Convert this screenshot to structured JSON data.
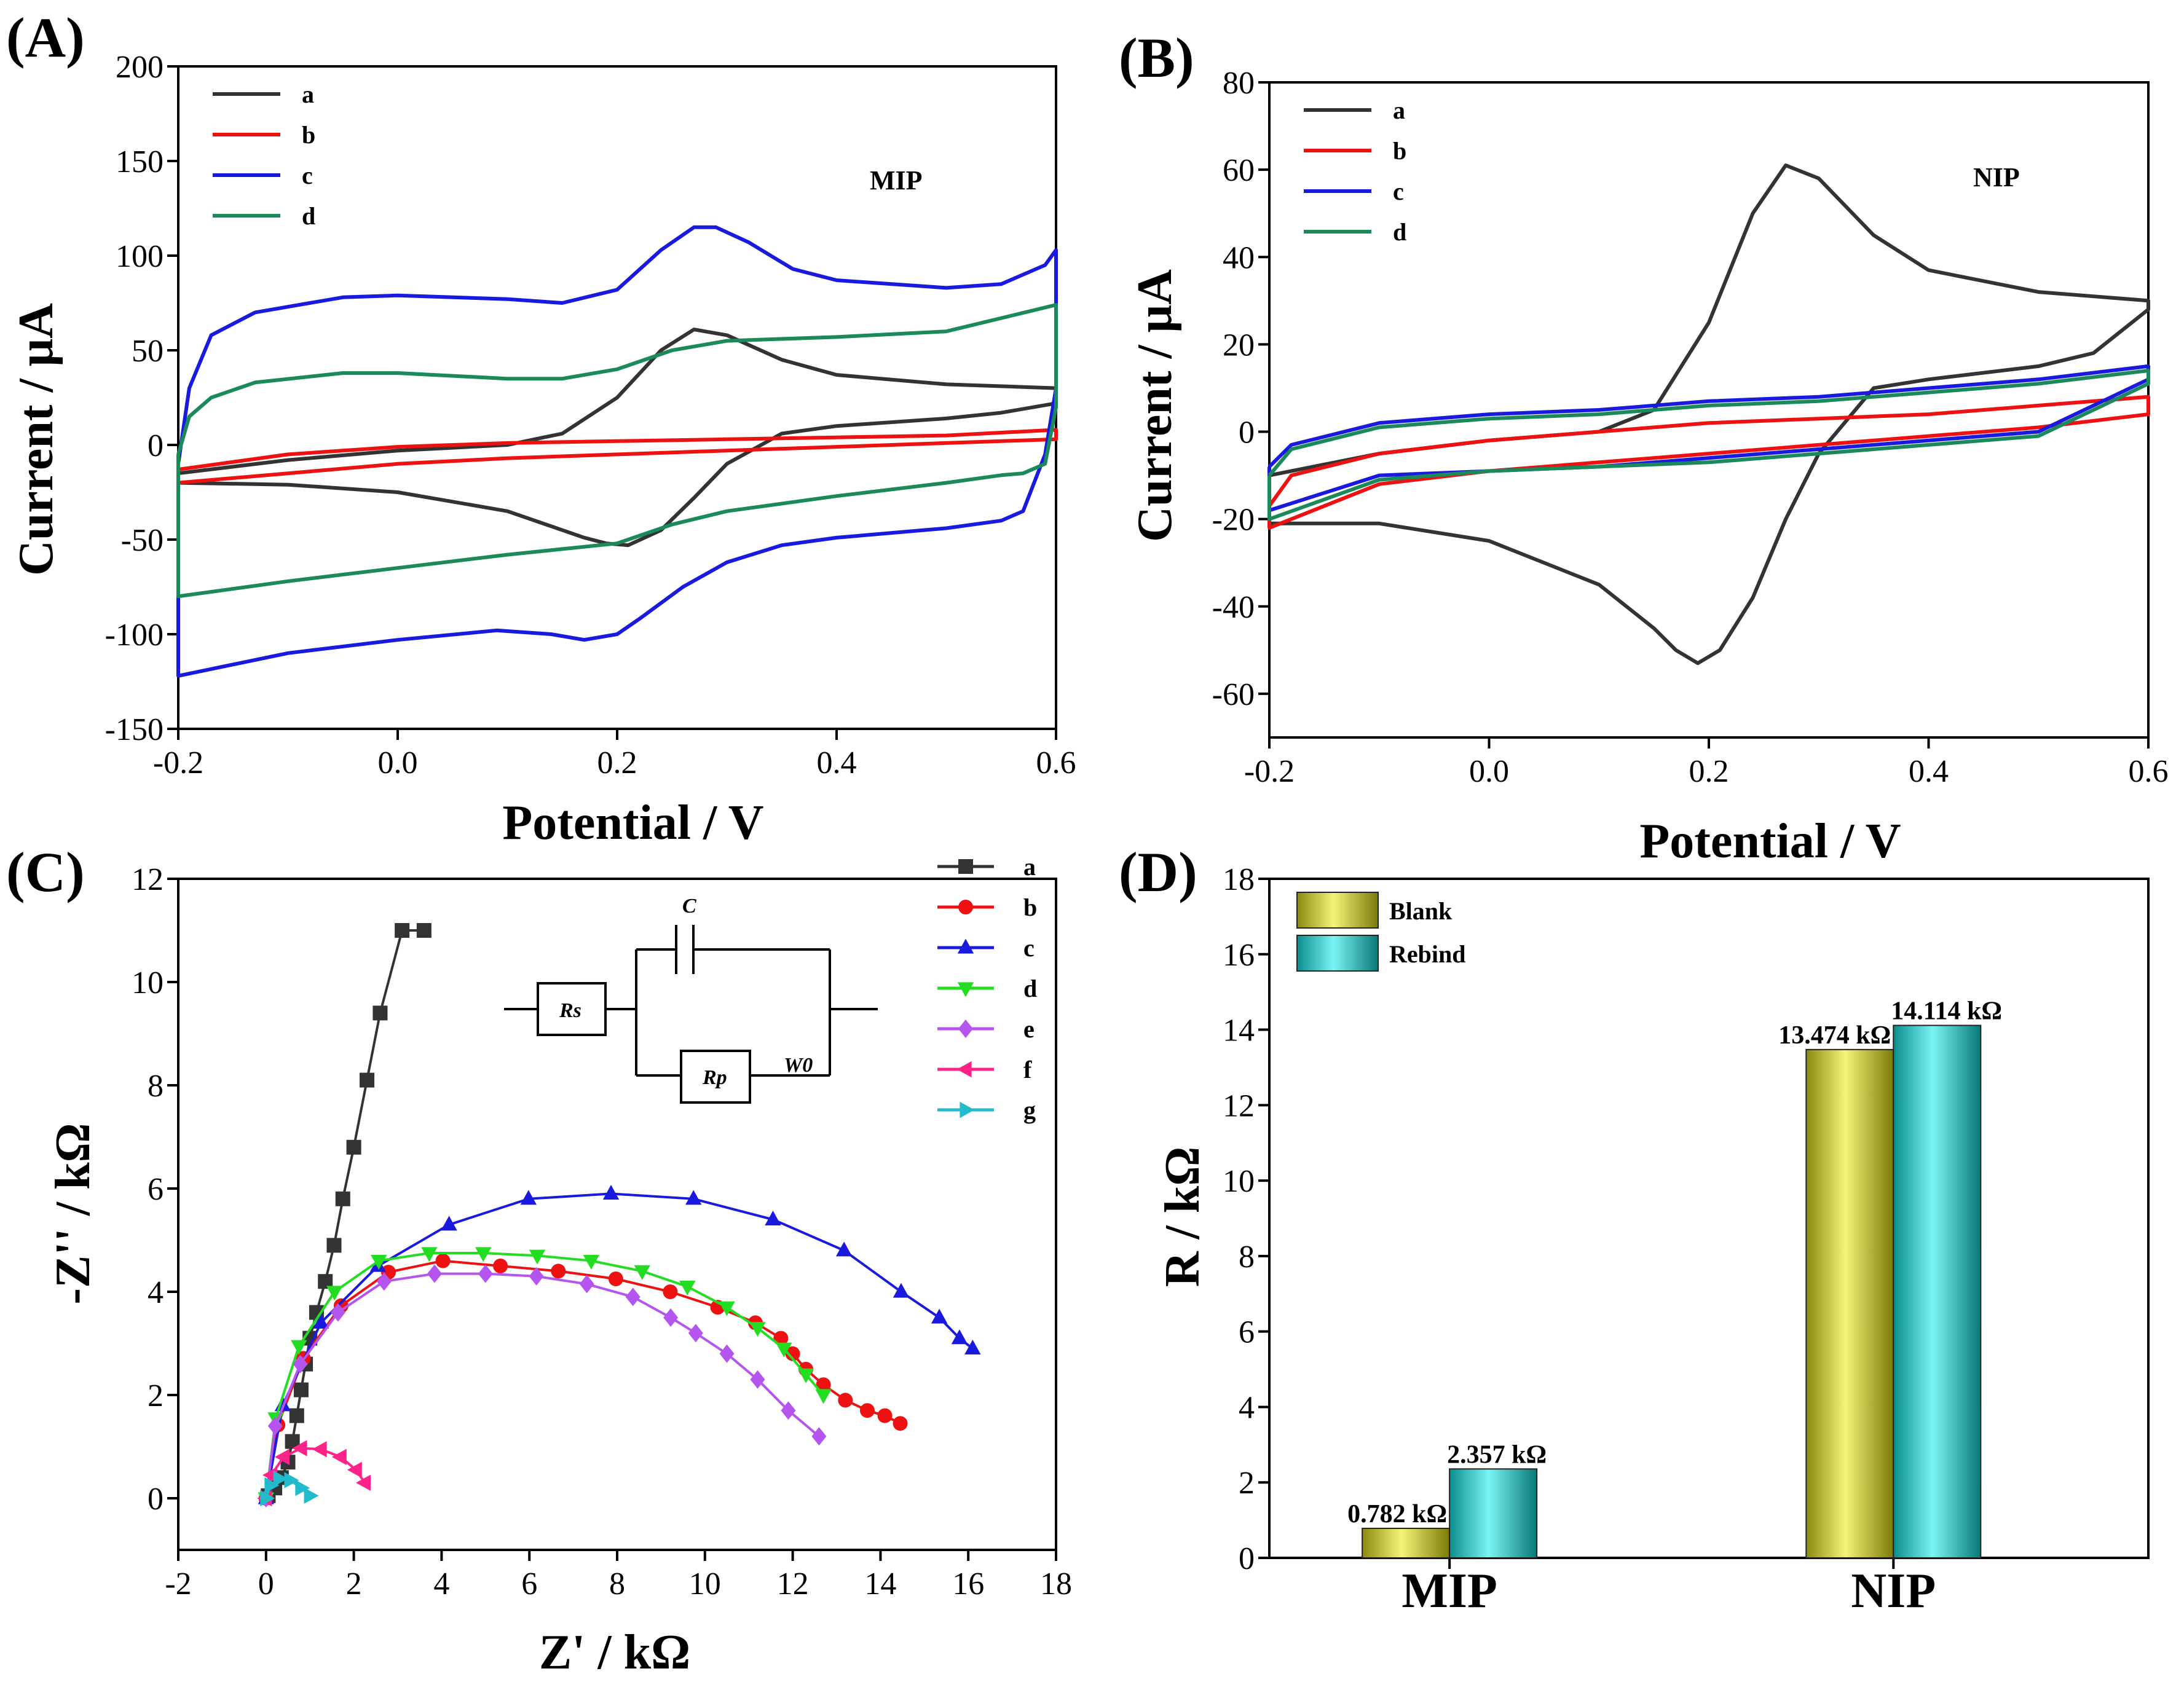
{
  "figure": {
    "panels": [
      "(A)",
      "(B)",
      "(C)",
      "(D)"
    ]
  },
  "circuit": {
    "labels": [
      "C",
      "Rs",
      "Rp",
      "W0"
    ]
  },
  "chart_data": [
    {
      "id": "A",
      "type": "line",
      "panel_label": "(A)",
      "annotation": "MIP",
      "xlabel": "Potential / V",
      "ylabel": "Current / μA",
      "xlim": [
        -0.2,
        0.6
      ],
      "ylim": [
        -150,
        200
      ],
      "xticks": [
        -0.2,
        0.0,
        0.2,
        0.4,
        0.6
      ],
      "xtick_labels": [
        "-0.2",
        "0.0",
        "0.2",
        "0.4",
        "0.6"
      ],
      "yticks": [
        -150,
        -100,
        -50,
        0,
        50,
        100,
        150,
        200
      ],
      "ytick_labels": [
        "-150",
        "-100",
        "-50",
        "0",
        "50",
        "100",
        "150",
        "200"
      ],
      "legend": "top-left",
      "series": [
        {
          "name": "a",
          "color": "#333333",
          "x": [
            -0.2,
            -0.1,
            0,
            0.1,
            0.15,
            0.2,
            0.24,
            0.27,
            0.3,
            0.35,
            0.4,
            0.5,
            0.6,
            0.6,
            0.55,
            0.5,
            0.4,
            0.35,
            0.3,
            0.27,
            0.24,
            0.21,
            0.19,
            0.17,
            0.15,
            0.1,
            0,
            -0.1,
            -0.2,
            -0.2
          ],
          "y": [
            -15,
            -8,
            -3,
            0,
            6,
            25,
            50,
            61,
            58,
            45,
            37,
            32,
            30,
            22,
            17,
            14,
            10,
            6,
            -10,
            -28,
            -45,
            -53,
            -52,
            -49,
            -45,
            -35,
            -25,
            -21,
            -20,
            -15
          ]
        },
        {
          "name": "b",
          "color": "#ee1111",
          "x": [
            -0.2,
            -0.1,
            0,
            0.1,
            0.2,
            0.3,
            0.4,
            0.5,
            0.6,
            0.6,
            0.5,
            0.4,
            0.3,
            0.2,
            0.1,
            0,
            -0.1,
            -0.2,
            -0.2
          ],
          "y": [
            -13,
            -5,
            -1,
            1,
            2,
            3,
            4,
            5,
            8,
            3,
            1,
            -1,
            -3,
            -5,
            -7,
            -10,
            -15,
            -20,
            -13
          ]
        },
        {
          "name": "c",
          "color": "#1a1adf",
          "x": [
            -0.2,
            -0.19,
            -0.17,
            -0.13,
            -0.05,
            0,
            0.1,
            0.15,
            0.2,
            0.24,
            0.27,
            0.29,
            0.32,
            0.36,
            0.4,
            0.5,
            0.55,
            0.59,
            0.6,
            0.6,
            0.59,
            0.57,
            0.55,
            0.5,
            0.4,
            0.35,
            0.3,
            0.26,
            0.22,
            0.2,
            0.17,
            0.14,
            0.09,
            0,
            -0.1,
            -0.2,
            -0.2
          ],
          "y": [
            -10,
            30,
            58,
            70,
            78,
            79,
            77,
            75,
            82,
            103,
            115,
            115,
            107,
            93,
            87,
            83,
            85,
            95,
            103,
            30,
            -5,
            -35,
            -40,
            -44,
            -49,
            -53,
            -62,
            -75,
            -92,
            -100,
            -103,
            -100,
            -98,
            -103,
            -110,
            -122,
            -10
          ]
        },
        {
          "name": "d",
          "color": "#1a8a5a",
          "x": [
            -0.2,
            -0.19,
            -0.17,
            -0.13,
            -0.05,
            0,
            0.1,
            0.15,
            0.2,
            0.25,
            0.3,
            0.4,
            0.5,
            0.6,
            0.6,
            0.59,
            0.57,
            0.55,
            0.5,
            0.4,
            0.3,
            0.25,
            0.2,
            0.15,
            0.1,
            0,
            -0.1,
            -0.2,
            -0.2
          ],
          "y": [
            -5,
            15,
            25,
            33,
            38,
            38,
            35,
            35,
            40,
            50,
            55,
            57,
            60,
            74,
            20,
            -10,
            -15,
            -16,
            -20,
            -27,
            -35,
            -42,
            -52,
            -55,
            -58,
            -65,
            -72,
            -80,
            -5
          ]
        }
      ]
    },
    {
      "id": "B",
      "type": "line",
      "panel_label": "(B)",
      "annotation": "NIP",
      "xlabel": "Potential / V",
      "ylabel": "Current / μA",
      "xlim": [
        -0.2,
        0.6
      ],
      "ylim": [
        -70,
        80
      ],
      "xticks": [
        -0.2,
        0.0,
        0.2,
        0.4,
        0.6
      ],
      "xtick_labels": [
        "-0.2",
        "0.0",
        "0.2",
        "0.4",
        "0.6"
      ],
      "yticks": [
        -60,
        -40,
        -20,
        0,
        20,
        40,
        60,
        80
      ],
      "ytick_labels": [
        "-60",
        "-40",
        "-20",
        "0",
        "20",
        "40",
        "60",
        "80"
      ],
      "legend": "top-left",
      "series": [
        {
          "name": "a",
          "color": "#333333",
          "x": [
            -0.2,
            -0.1,
            0,
            0.1,
            0.15,
            0.2,
            0.24,
            0.27,
            0.3,
            0.35,
            0.4,
            0.5,
            0.6,
            0.6,
            0.55,
            0.5,
            0.4,
            0.35,
            0.3,
            0.27,
            0.24,
            0.21,
            0.19,
            0.17,
            0.15,
            0.1,
            0,
            -0.1,
            -0.2,
            -0.2
          ],
          "y": [
            -10,
            -5,
            -2,
            0,
            5,
            25,
            50,
            61,
            58,
            45,
            37,
            32,
            30,
            28,
            18,
            15,
            12,
            10,
            -5,
            -20,
            -38,
            -50,
            -53,
            -50,
            -45,
            -35,
            -25,
            -21,
            -21,
            -10
          ]
        },
        {
          "name": "b",
          "color": "#ee1111",
          "x": [
            -0.2,
            -0.18,
            -0.1,
            0,
            0.1,
            0.2,
            0.3,
            0.4,
            0.5,
            0.6,
            0.6,
            0.5,
            0.4,
            0.3,
            0.2,
            0.1,
            0,
            -0.1,
            -0.2,
            -0.2
          ],
          "y": [
            -17,
            -10,
            -5,
            -2,
            0,
            2,
            3,
            4,
            6,
            8,
            4,
            1,
            -1,
            -3,
            -5,
            -7,
            -9,
            -12,
            -22,
            -17
          ]
        },
        {
          "name": "c",
          "color": "#1a1adf",
          "x": [
            -0.2,
            -0.18,
            -0.1,
            0,
            0.1,
            0.2,
            0.3,
            0.4,
            0.5,
            0.6,
            0.6,
            0.5,
            0.4,
            0.3,
            0.2,
            0.1,
            0,
            -0.1,
            -0.2,
            -0.2
          ],
          "y": [
            -8,
            -3,
            2,
            4,
            5,
            7,
            8,
            10,
            12,
            15,
            12,
            0,
            -2,
            -4,
            -6,
            -8,
            -9,
            -10,
            -18,
            -8
          ]
        },
        {
          "name": "d",
          "color": "#1a8a5a",
          "x": [
            -0.2,
            -0.18,
            -0.1,
            0,
            0.1,
            0.2,
            0.3,
            0.4,
            0.5,
            0.6,
            0.6,
            0.5,
            0.4,
            0.3,
            0.2,
            0.1,
            0,
            -0.1,
            -0.2,
            -0.2
          ],
          "y": [
            -10,
            -4,
            1,
            3,
            4,
            6,
            7,
            9,
            11,
            14,
            11,
            -1,
            -3,
            -5,
            -7,
            -8,
            -9,
            -11,
            -20,
            -10
          ]
        }
      ]
    },
    {
      "id": "C",
      "type": "scatter",
      "panel_label": "(C)",
      "xlabel": "Z' / kΩ",
      "ylabel": "-Z'' / kΩ",
      "xlim": [
        -2,
        18
      ],
      "ylim": [
        -1,
        12
      ],
      "xticks": [
        -2,
        0,
        2,
        4,
        6,
        8,
        10,
        12,
        14,
        16,
        18
      ],
      "xtick_labels": [
        "-2",
        "0",
        "2",
        "4",
        "6",
        "8",
        "10",
        "12",
        "14",
        "16",
        "18"
      ],
      "yticks": [
        0,
        2,
        4,
        6,
        8,
        10,
        12
      ],
      "ytick_labels": [
        "0",
        "2",
        "4",
        "6",
        "8",
        "10",
        "12"
      ],
      "legend": "top-right",
      "series": [
        {
          "name": "a",
          "color": "#333333",
          "marker": "square",
          "x": [
            0.05,
            0.2,
            0.35,
            0.5,
            0.6,
            0.7,
            0.8,
            0.9,
            1.0,
            1.15,
            1.35,
            1.55,
            1.75,
            2.0,
            2.3,
            2.6,
            3.1,
            3.6
          ],
          "y": [
            0.05,
            0.2,
            0.4,
            0.7,
            1.1,
            1.6,
            2.1,
            2.6,
            3.1,
            3.6,
            4.2,
            4.9,
            5.8,
            6.8,
            8.1,
            9.4,
            11.0,
            11.0
          ]
        },
        {
          "name": "b",
          "color": "#ee1111",
          "marker": "circle",
          "x": [
            0,
            0.27,
            0.85,
            1.71,
            2.79,
            4.03,
            5.34,
            6.66,
            7.97,
            9.21,
            10.29,
            11.15,
            11.73,
            12.0,
            12.3,
            12.7,
            13.2,
            13.7,
            14.1,
            14.45
          ],
          "y": [
            0,
            1.42,
            2.71,
            3.73,
            4.38,
            4.6,
            4.5,
            4.4,
            4.25,
            4.0,
            3.7,
            3.4,
            3.1,
            2.8,
            2.5,
            2.2,
            1.9,
            1.7,
            1.6,
            1.45
          ]
        },
        {
          "name": "c",
          "color": "#1a1adf",
          "marker": "triangle",
          "x": [
            0,
            0.38,
            1.25,
            2.55,
            4.17,
            5.98,
            7.86,
            9.74,
            11.55,
            13.17,
            14.47,
            15.34,
            15.8,
            16.1
          ],
          "y": [
            0,
            1.8,
            3.4,
            4.5,
            5.3,
            5.8,
            5.9,
            5.8,
            5.4,
            4.8,
            4.0,
            3.5,
            3.1,
            2.9
          ]
        },
        {
          "name": "d",
          "color": "#22dd22",
          "marker": "triangle-down",
          "x": [
            0,
            0.22,
            0.75,
            1.56,
            2.57,
            3.72,
            4.95,
            6.18,
            7.41,
            8.57,
            9.6,
            10.5,
            11.2,
            11.8,
            12.3,
            12.7
          ],
          "y": [
            0,
            1.55,
            2.95,
            4.0,
            4.6,
            4.75,
            4.75,
            4.7,
            4.6,
            4.4,
            4.1,
            3.7,
            3.3,
            2.9,
            2.4,
            2.0
          ]
        },
        {
          "name": "e",
          "color": "#b355ee",
          "marker": "diamond",
          "x": [
            0,
            0.21,
            0.78,
            1.64,
            2.69,
            3.84,
            5.0,
            6.16,
            7.31,
            8.36,
            9.22,
            9.79,
            10.5,
            11.2,
            11.9,
            12.6
          ],
          "y": [
            0,
            1.4,
            2.6,
            3.6,
            4.2,
            4.35,
            4.35,
            4.3,
            4.15,
            3.9,
            3.5,
            3.2,
            2.8,
            2.3,
            1.7,
            1.2
          ]
        },
        {
          "name": "f",
          "color": "#ff2288",
          "marker": "triangle-left",
          "x": [
            0,
            0.12,
            0.4,
            0.8,
            1.25,
            1.7,
            2.05,
            2.25
          ],
          "y": [
            0,
            0.45,
            0.8,
            0.97,
            0.95,
            0.8,
            0.55,
            0.3
          ]
        },
        {
          "name": "g",
          "color": "#22bbcc",
          "marker": "triangle-right",
          "x": [
            0,
            0.1,
            0.3,
            0.55,
            0.8,
            1.0
          ],
          "y": [
            0,
            0.25,
            0.38,
            0.35,
            0.2,
            0.05
          ]
        }
      ]
    },
    {
      "id": "D",
      "type": "bar",
      "panel_label": "(D)",
      "xlabel": "",
      "ylabel": "R / kΩ",
      "ylim": [
        0,
        18
      ],
      "yticks": [
        0,
        2,
        4,
        6,
        8,
        10,
        12,
        14,
        16,
        18
      ],
      "ytick_labels": [
        "0",
        "2",
        "4",
        "6",
        "8",
        "10",
        "12",
        "14",
        "16",
        "18"
      ],
      "categories": [
        "MIP",
        "NIP"
      ],
      "legend": "top-left",
      "series": [
        {
          "name": "Blank",
          "color": "#d4d42c",
          "values": [
            0.782,
            13.474
          ],
          "labels": [
            "0.782 kΩ",
            "13.474 kΩ"
          ]
        },
        {
          "name": "Rebind",
          "color": "#1ad4d4",
          "values": [
            2.357,
            14.114
          ],
          "labels": [
            "2.357 kΩ",
            "14.114 kΩ"
          ]
        }
      ]
    }
  ]
}
